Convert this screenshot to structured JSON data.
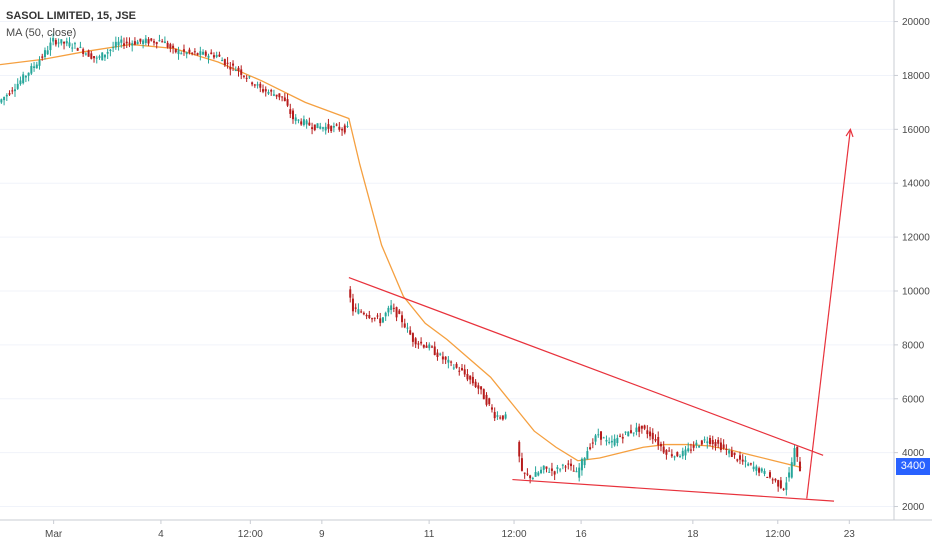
{
  "chart_data": {
    "type": "candlestick",
    "title": "SASOL LIMITED, 15, JSE",
    "indicator_label": "MA (50, close)",
    "current_price": "3400",
    "ylim": [
      1500,
      20800
    ],
    "y_ticks": [
      2000,
      4000,
      6000,
      8000,
      10000,
      12000,
      14000,
      16000,
      18000,
      20000
    ],
    "y_tick_labels": [
      "2000",
      "4000",
      "6000",
      "8000",
      "10000",
      "12000",
      "14000",
      "16000",
      "18000",
      "20000"
    ],
    "x_tick_labels": [
      "Mar",
      "4",
      "12:00",
      "9",
      "11",
      "12:00",
      "16",
      "18",
      "12:00",
      "23"
    ],
    "colors": {
      "up": "#26a69a",
      "down": "#b71c1c",
      "ma": "#f5a040",
      "trendline": "#e8323c",
      "badge": "#2962ff",
      "grid": "#f0f3fa",
      "axis": "#c9ccd3"
    },
    "segments": [
      {
        "name": "session-1",
        "points": [
          [
            0,
            17000
          ],
          [
            2,
            17800
          ],
          [
            4,
            18700
          ],
          [
            5,
            19300
          ],
          [
            7,
            19100
          ],
          [
            9,
            18600
          ],
          [
            11,
            19200
          ],
          [
            13,
            19250
          ],
          [
            15,
            19300
          ],
          [
            16,
            18900
          ],
          [
            18,
            18800
          ],
          [
            20,
            18750
          ],
          [
            21,
            18400
          ],
          [
            22,
            18200
          ],
          [
            24,
            17500
          ],
          [
            26,
            17200
          ],
          [
            27,
            16400
          ],
          [
            29,
            16100
          ],
          [
            31,
            16050
          ],
          [
            32,
            16000
          ]
        ]
      },
      {
        "name": "session-2",
        "points": [
          [
            32.0,
            10100
          ],
          [
            32.5,
            9300
          ],
          [
            33.5,
            9200
          ],
          [
            35.0,
            8900
          ],
          [
            36.0,
            9400
          ],
          [
            37.0,
            8900
          ],
          [
            38.0,
            8200
          ],
          [
            39.5,
            7900
          ],
          [
            41.0,
            7400
          ],
          [
            42.5,
            7000
          ],
          [
            44.0,
            6400
          ],
          [
            45.5,
            5400
          ],
          [
            46.5,
            5300
          ]
        ]
      },
      {
        "name": "session-3",
        "points": [
          [
            47.5,
            4400
          ],
          [
            48.0,
            3200
          ],
          [
            49.0,
            3100
          ],
          [
            50.0,
            3400
          ],
          [
            51.0,
            3300
          ],
          [
            52.0,
            3600
          ],
          [
            53.0,
            3200
          ],
          [
            54.0,
            4100
          ],
          [
            55.0,
            4700
          ],
          [
            56.0,
            4300
          ],
          [
            57.0,
            4600
          ],
          [
            58.0,
            4800
          ],
          [
            59.0,
            4900
          ],
          [
            60.0,
            4600
          ],
          [
            61.0,
            4100
          ],
          [
            62.0,
            3900
          ],
          [
            63.0,
            4000
          ],
          [
            64.0,
            4300
          ],
          [
            65.0,
            4500
          ],
          [
            66.0,
            4300
          ],
          [
            67.0,
            4000
          ],
          [
            68.0,
            3700
          ],
          [
            69.0,
            3500
          ],
          [
            70.0,
            3300
          ],
          [
            71.0,
            3000
          ],
          [
            72.0,
            2700
          ],
          [
            72.5,
            3200
          ],
          [
            73.0,
            4100
          ],
          [
            73.5,
            3400
          ]
        ]
      }
    ],
    "ma": [
      [
        0,
        18400
      ],
      [
        4,
        18600
      ],
      [
        8,
        18900
      ],
      [
        12,
        19150
      ],
      [
        16,
        19000
      ],
      [
        20,
        18500
      ],
      [
        24,
        17800
      ],
      [
        28,
        17000
      ],
      [
        32,
        16400
      ],
      [
        33,
        14700
      ],
      [
        35,
        11700
      ],
      [
        37,
        9800
      ],
      [
        39,
        8800
      ],
      [
        41,
        8200
      ],
      [
        43,
        7500
      ],
      [
        45,
        6800
      ],
      [
        47,
        5800
      ],
      [
        49,
        4800
      ],
      [
        51,
        4200
      ],
      [
        53,
        3700
      ],
      [
        55,
        3800
      ],
      [
        57,
        4000
      ],
      [
        59,
        4200
      ],
      [
        61,
        4300
      ],
      [
        63,
        4300
      ],
      [
        65,
        4250
      ],
      [
        67,
        4100
      ],
      [
        69,
        3900
      ],
      [
        71,
        3700
      ],
      [
        73,
        3500
      ],
      [
        73.5,
        3450
      ]
    ],
    "trendlines": [
      [
        [
          32.0,
          10500
        ],
        [
          75.5,
          3900
        ]
      ],
      [
        [
          47.0,
          3000
        ],
        [
          76.5,
          2200
        ]
      ],
      [
        [
          74.0,
          2300
        ],
        [
          78.0,
          16000
        ]
      ]
    ]
  }
}
